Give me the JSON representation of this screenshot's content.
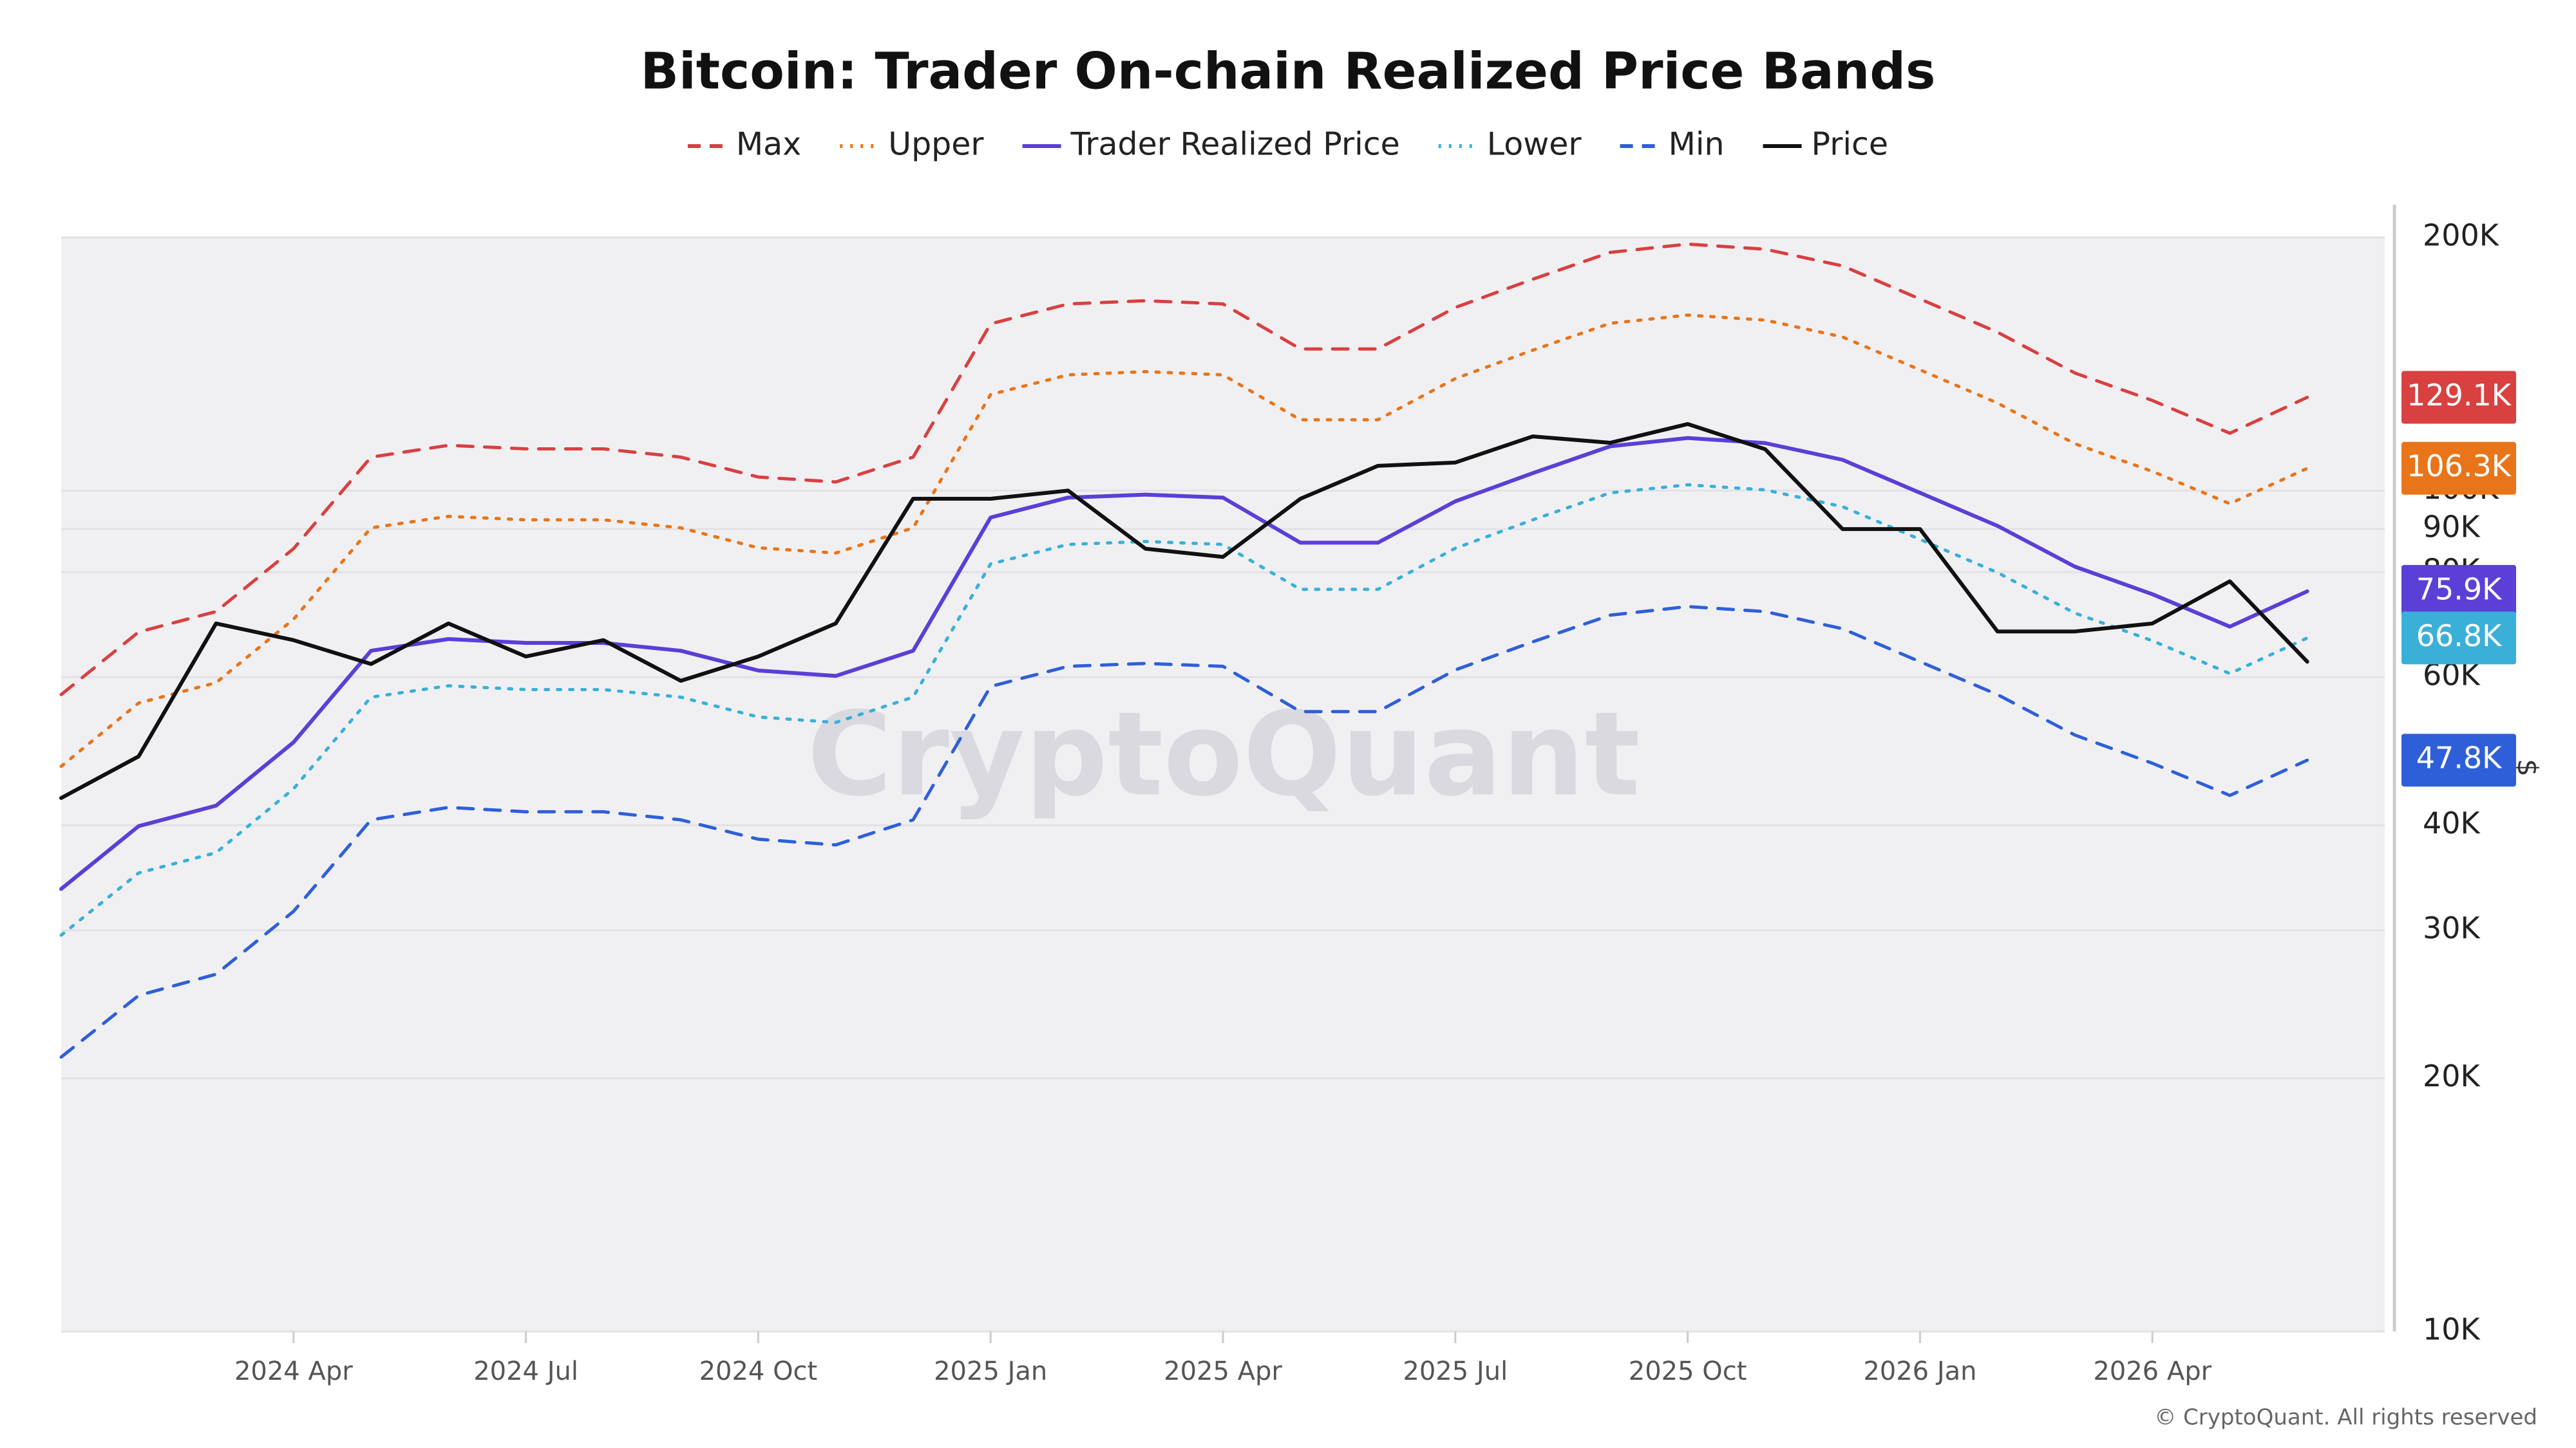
{
  "chart_data": {
    "type": "line",
    "title": "Bitcoin: Trader On-chain Realized Price Bands",
    "y_label": "$",
    "watermark": "CryptoQuant",
    "credit": "© CryptoQuant. All rights reserved",
    "log_y": true,
    "grid": true,
    "legend": "top",
    "x": [
      "2024-01",
      "2024-02",
      "2024-03",
      "2024-04",
      "2024-05",
      "2024-06",
      "2024-07",
      "2024-08",
      "2024-09",
      "2024-10",
      "2024-11",
      "2024-12",
      "2025-01",
      "2025-02",
      "2025-03",
      "2025-04",
      "2025-05",
      "2025-06",
      "2025-07",
      "2025-08",
      "2025-09",
      "2025-10",
      "2025-11",
      "2025-12",
      "2026-01",
      "2026-02",
      "2026-03",
      "2026-04",
      "2026-05",
      "2026-06"
    ],
    "xlim": [
      "2024-01",
      "2026-07"
    ],
    "xticks": [
      {
        "value": "2024-04",
        "label": "2024 Apr"
      },
      {
        "value": "2024-07",
        "label": "2024 Jul"
      },
      {
        "value": "2024-10",
        "label": "2024 Oct"
      },
      {
        "value": "2025-01",
        "label": "2025 Jan"
      },
      {
        "value": "2025-04",
        "label": "2025 Apr"
      },
      {
        "value": "2025-07",
        "label": "2025 Jul"
      },
      {
        "value": "2025-10",
        "label": "2025 Oct"
      },
      {
        "value": "2026-01",
        "label": "2026 Jan"
      },
      {
        "value": "2026-04",
        "label": "2026 Apr"
      }
    ],
    "ylim": [
      10000,
      200000
    ],
    "yticks": [
      {
        "value": 10000,
        "label": "10K"
      },
      {
        "value": 20000,
        "label": "20K"
      },
      {
        "value": 30000,
        "label": "30K"
      },
      {
        "value": 40000,
        "label": "40K"
      },
      {
        "value": 60000,
        "label": "60K"
      },
      {
        "value": 80000,
        "label": "80K"
      },
      {
        "value": 90000,
        "label": "90K"
      },
      {
        "value": 100000,
        "label": "100K"
      },
      {
        "value": 200000,
        "label": "200K"
      }
    ],
    "series": [
      {
        "name": "Max",
        "color": "#d94040",
        "dash": "dashed",
        "values": [
          57200,
          67900,
          71800,
          85300,
          109600,
          113200,
          112100,
          112100,
          109600,
          103800,
          102400,
          109600,
          157900,
          166700,
          168200,
          166700,
          147400,
          147400,
          165100,
          178400,
          192000,
          196400,
          193700,
          185000,
          169000,
          154300,
          138000,
          128000,
          117000,
          129100
        ],
        "value_labels": [
          null,
          null,
          null,
          null,
          null,
          null,
          null,
          null,
          null,
          null,
          null,
          null,
          null,
          null,
          null,
          null,
          null,
          null,
          null,
          null,
          null,
          null,
          null,
          null,
          null,
          null,
          null,
          null,
          null,
          "129.1K"
        ]
      },
      {
        "name": "Upper",
        "color": "#e8751a",
        "dash": "dotted",
        "values": [
          47000,
          55900,
          59100,
          70300,
          90300,
          93200,
          92300,
          92300,
          90300,
          85500,
          84300,
          90300,
          130100,
          137300,
          138500,
          137300,
          121400,
          121400,
          135900,
          146900,
          158100,
          161700,
          159500,
          152300,
          139200,
          127100,
          113700,
          105400,
          96500,
          106300
        ],
        "value_labels": [
          null,
          null,
          null,
          null,
          null,
          null,
          null,
          null,
          null,
          null,
          null,
          null,
          null,
          null,
          null,
          null,
          null,
          null,
          null,
          null,
          null,
          null,
          null,
          null,
          null,
          null,
          null,
          null,
          null,
          "106.3K"
        ]
      },
      {
        "name": "Trader Realized Price",
        "color": "#5b3fd6",
        "dash": "solid",
        "values": [
          33600,
          39900,
          42200,
          50200,
          64500,
          66600,
          65900,
          65900,
          64500,
          61100,
          60200,
          64500,
          92900,
          98100,
          98900,
          98100,
          86700,
          86700,
          97100,
          104900,
          112900,
          115500,
          113900,
          108800,
          99400,
          90800,
          81200,
          75300,
          68900,
          75900
        ],
        "value_labels": [
          null,
          null,
          null,
          null,
          null,
          null,
          null,
          null,
          null,
          null,
          null,
          null,
          null,
          null,
          null,
          null,
          null,
          null,
          null,
          null,
          null,
          null,
          null,
          null,
          null,
          null,
          null,
          null,
          null,
          "75.9K"
        ]
      },
      {
        "name": "Lower",
        "color": "#3ab0d8",
        "dash": "dotted",
        "values": [
          29600,
          35100,
          37100,
          44200,
          56800,
          58600,
          58000,
          58000,
          56800,
          53800,
          53000,
          56800,
          81800,
          86300,
          87000,
          86300,
          76300,
          76300,
          85400,
          92300,
          99400,
          101600,
          100200,
          95700,
          87500,
          79900,
          71500,
          66300,
          60600,
          66800
        ],
        "value_labels": [
          null,
          null,
          null,
          null,
          null,
          null,
          null,
          null,
          null,
          null,
          null,
          null,
          null,
          null,
          null,
          null,
          null,
          null,
          null,
          null,
          null,
          null,
          null,
          null,
          null,
          null,
          null,
          null,
          null,
          "66.8K"
        ]
      },
      {
        "name": "Min",
        "color": "#2f5fd8",
        "dash": "dashed",
        "values": [
          21200,
          25100,
          26600,
          31600,
          40600,
          42000,
          41500,
          41500,
          40600,
          38500,
          37900,
          40600,
          58500,
          61800,
          62300,
          61800,
          54600,
          54600,
          61200,
          66100,
          71100,
          72800,
          71800,
          68500,
          62600,
          57200,
          51200,
          47400,
          43400,
          47800
        ],
        "value_labels": [
          null,
          null,
          null,
          null,
          null,
          null,
          null,
          null,
          null,
          null,
          null,
          null,
          null,
          null,
          null,
          null,
          null,
          null,
          null,
          null,
          null,
          null,
          null,
          null,
          null,
          null,
          null,
          null,
          null,
          "47.8K"
        ]
      },
      {
        "name": "Price",
        "color": "#111111",
        "dash": "solid",
        "values": [
          43100,
          48300,
          69500,
          66400,
          62200,
          69500,
          63500,
          66400,
          59400,
          63500,
          69500,
          97800,
          97800,
          100000,
          85300,
          83400,
          97800,
          107000,
          108000,
          116000,
          114000,
          120000,
          112000,
          90000,
          90000,
          68000,
          68000,
          69500,
          78000,
          62600
        ]
      }
    ]
  }
}
